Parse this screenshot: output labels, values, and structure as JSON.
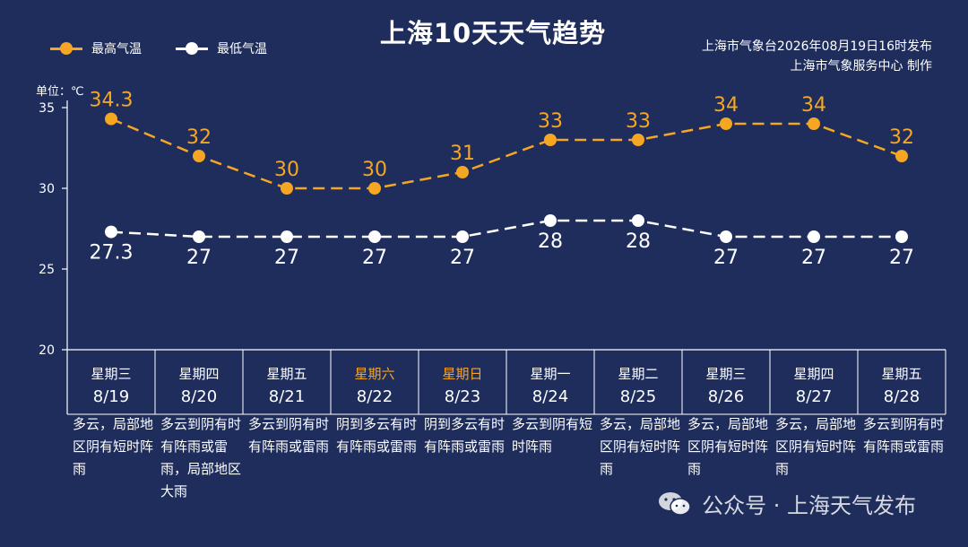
{
  "title": "上海10天天气趋势",
  "legend": {
    "high_label": "最高气温",
    "low_label": "最低气温"
  },
  "source": {
    "line1": "上海市气象台2026年08月19日16时发布",
    "line2": "上海市气象服务中心 制作"
  },
  "unit_label": "单位：℃",
  "watermark": {
    "text": "公众号 · 上海天气发布",
    "icon": "wechat-icon"
  },
  "colors": {
    "background": "#1f2d5c",
    "high": "#f5a623",
    "low": "#ffffff",
    "weekend_text": "#f5a623",
    "grid": "#ffffff"
  },
  "days": [
    {
      "weekday": "星期三",
      "date": "8/19",
      "desc": "多云，局部地区阴有短时阵雨",
      "weekend": false
    },
    {
      "weekday": "星期四",
      "date": "8/20",
      "desc": "多云到阴有时有阵雨或雷雨，局部地区大雨",
      "weekend": false
    },
    {
      "weekday": "星期五",
      "date": "8/21",
      "desc": "多云到阴有时有阵雨或雷雨",
      "weekend": false
    },
    {
      "weekday": "星期六",
      "date": "8/22",
      "desc": "阴到多云有时有阵雨或雷雨",
      "weekend": true
    },
    {
      "weekday": "星期日",
      "date": "8/23",
      "desc": "阴到多云有时有阵雨或雷雨",
      "weekend": true
    },
    {
      "weekday": "星期一",
      "date": "8/24",
      "desc": "多云到阴有短时阵雨",
      "weekend": false
    },
    {
      "weekday": "星期二",
      "date": "8/25",
      "desc": "多云，局部地区阴有短时阵雨",
      "weekend": false
    },
    {
      "weekday": "星期三",
      "date": "8/26",
      "desc": "多云，局部地区阴有短时阵雨",
      "weekend": false
    },
    {
      "weekday": "星期四",
      "date": "8/27",
      "desc": "多云，局部地区阴有短时阵雨",
      "weekend": false
    },
    {
      "weekday": "星期五",
      "date": "8/28",
      "desc": "多云到阴有时有阵雨或雷雨",
      "weekend": false
    }
  ],
  "chart_data": {
    "type": "line",
    "x": [
      "8/19",
      "8/20",
      "8/21",
      "8/22",
      "8/23",
      "8/24",
      "8/25",
      "8/26",
      "8/27",
      "8/28"
    ],
    "series": [
      {
        "name": "最高气温",
        "values": [
          34.3,
          32,
          30,
          30,
          31,
          33,
          33,
          34,
          34,
          32
        ],
        "labels": [
          "34.3",
          "32",
          "30",
          "30",
          "31",
          "33",
          "33",
          "34",
          "34",
          "32"
        ]
      },
      {
        "name": "最低气温",
        "values": [
          27.3,
          27,
          27,
          27,
          27,
          28,
          28,
          27,
          27,
          27
        ],
        "labels": [
          "27.3",
          "27",
          "27",
          "27",
          "27",
          "28",
          "28",
          "27",
          "27",
          "27"
        ]
      }
    ],
    "ylim": [
      20,
      35
    ],
    "yticks": [
      20,
      25,
      30,
      35
    ],
    "ytick_labels": [
      "20",
      "25",
      "30",
      "35"
    ],
    "ylabel": "单位：℃",
    "line_style": "dashed",
    "grid": false,
    "legend_position": "top-left"
  }
}
